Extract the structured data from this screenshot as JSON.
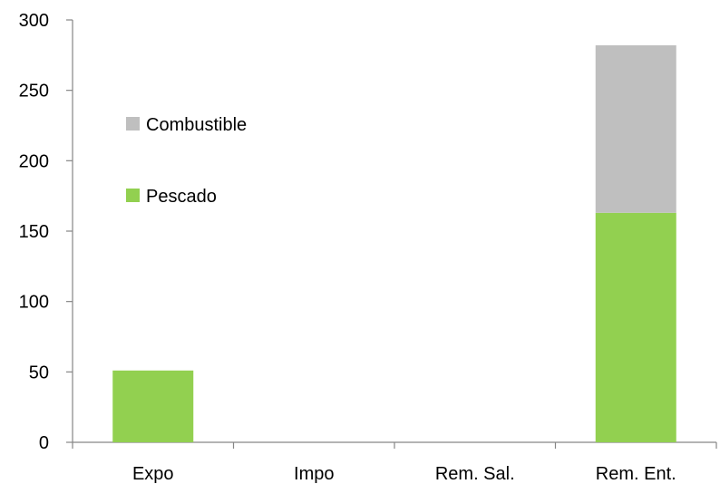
{
  "chart_data": {
    "type": "bar",
    "stacked": true,
    "categories": [
      "Expo",
      "Impo",
      "Rem. Sal.",
      "Rem. Ent."
    ],
    "series": [
      {
        "name": "Pescado",
        "color": "#92d050",
        "values": [
          51,
          0,
          0,
          163
        ]
      },
      {
        "name": "Combustible",
        "color": "#bfbfbf",
        "values": [
          0,
          0,
          0,
          119
        ]
      }
    ],
    "ylim": [
      0,
      300
    ],
    "yticks": [
      0,
      50,
      100,
      150,
      200,
      250,
      300
    ],
    "grid": false,
    "legend": {
      "placement": "top-left",
      "order": [
        "Combustible",
        "Pescado"
      ]
    }
  }
}
